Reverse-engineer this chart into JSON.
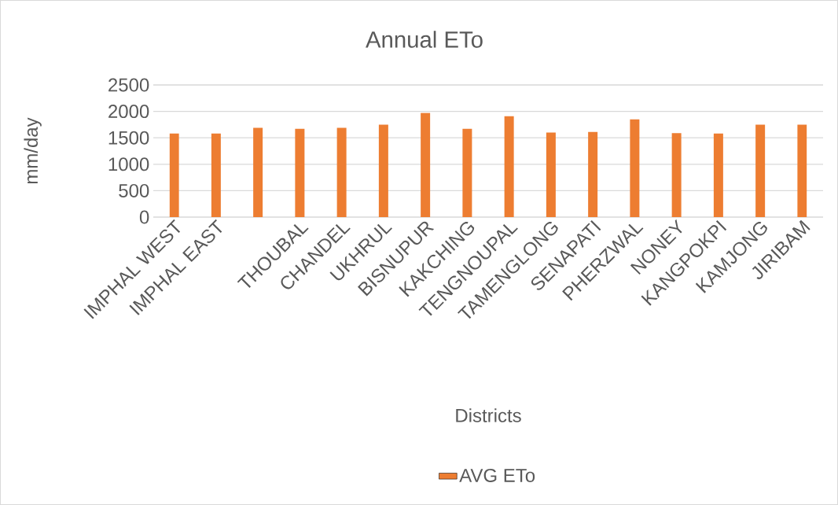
{
  "chart_data": {
    "type": "bar",
    "title": "Annual ETo",
    "xlabel": "Districts",
    "ylabel": "mm/day",
    "categories": [
      "IMPHAL WEST",
      "IMPHAL EAST",
      null,
      "THOUBAL",
      "CHANDEL",
      "UKHRUL",
      "BISNUPUR",
      "KAKCHING",
      "TENGNOUPAL",
      "TAMENGLONG",
      "SENAPATI",
      "PHERZWAL",
      "NONEY",
      "KANGPOKPI",
      "KAMJONG",
      "JIRIBAM"
    ],
    "series": [
      {
        "name": "AVG ETo",
        "color": "#ed7d31",
        "values": [
          1580,
          1580,
          1690,
          1670,
          1690,
          1750,
          1970,
          1670,
          1910,
          1600,
          1610,
          1850,
          1590,
          1580,
          1750,
          1750
        ]
      }
    ],
    "ylim": [
      0,
      2500
    ],
    "yticks": [
      0,
      500,
      1000,
      1500,
      2000,
      2500
    ],
    "grid": "y",
    "legend": "bottom"
  }
}
